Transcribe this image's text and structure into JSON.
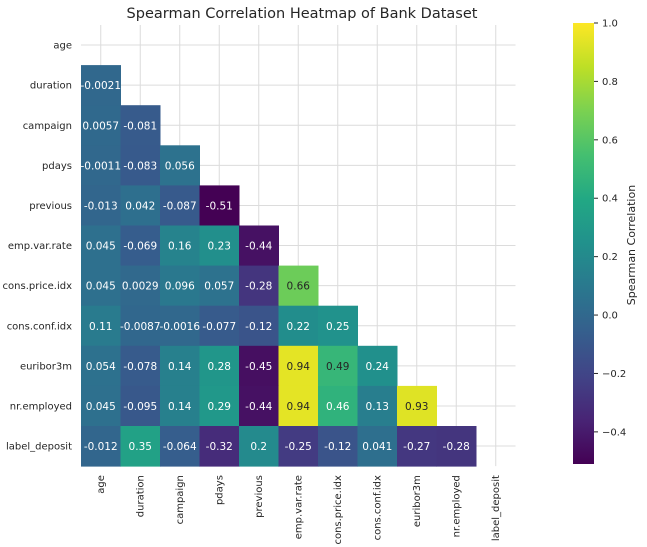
{
  "chart_data": {
    "type": "heatmap",
    "title": "Spearman Correlation Heatmap of Bank Dataset",
    "variables": [
      "age",
      "duration",
      "campaign",
      "pdays",
      "previous",
      "emp.var.rate",
      "cons.price.idx",
      "cons.conf.idx",
      "euribor3m",
      "nr.employed",
      "label_deposit"
    ],
    "mask": "upper-triangle-including-diagonal",
    "lower_triangle": [
      [],
      [
        "-0.0021"
      ],
      [
        "0.0057",
        "-0.081"
      ],
      [
        "-0.0011",
        "-0.083",
        "0.056"
      ],
      [
        "-0.013",
        "0.042",
        "-0.087",
        "-0.51"
      ],
      [
        "0.045",
        "-0.069",
        "0.16",
        "0.23",
        "-0.44"
      ],
      [
        "0.045",
        "0.0029",
        "0.096",
        "0.057",
        "-0.28",
        "0.66"
      ],
      [
        "0.11",
        "-0.0087",
        "-0.0016",
        "-0.077",
        "-0.12",
        "0.22",
        "0.25"
      ],
      [
        "0.054",
        "-0.078",
        "0.14",
        "0.28",
        "-0.45",
        "0.94",
        "0.49",
        "0.24"
      ],
      [
        "0.045",
        "-0.095",
        "0.14",
        "0.29",
        "-0.44",
        "0.94",
        "0.46",
        "0.13",
        "0.93"
      ],
      [
        "-0.012",
        "0.35",
        "-0.064",
        "-0.32",
        "0.2",
        "-0.25",
        "-0.12",
        "0.041",
        "-0.27",
        "-0.28"
      ]
    ],
    "colorbar": {
      "label": "Spearman Correlation",
      "vmin": -0.51,
      "vmax": 1.0,
      "ticks": [
        "1.0",
        "0.8",
        "0.6",
        "0.4",
        "0.2",
        "0.0",
        "−0.2",
        "−0.4"
      ],
      "tick_values": [
        1.0,
        0.8,
        0.6,
        0.4,
        0.2,
        0.0,
        -0.2,
        -0.4
      ],
      "colormap": "viridis"
    },
    "grid": true
  }
}
